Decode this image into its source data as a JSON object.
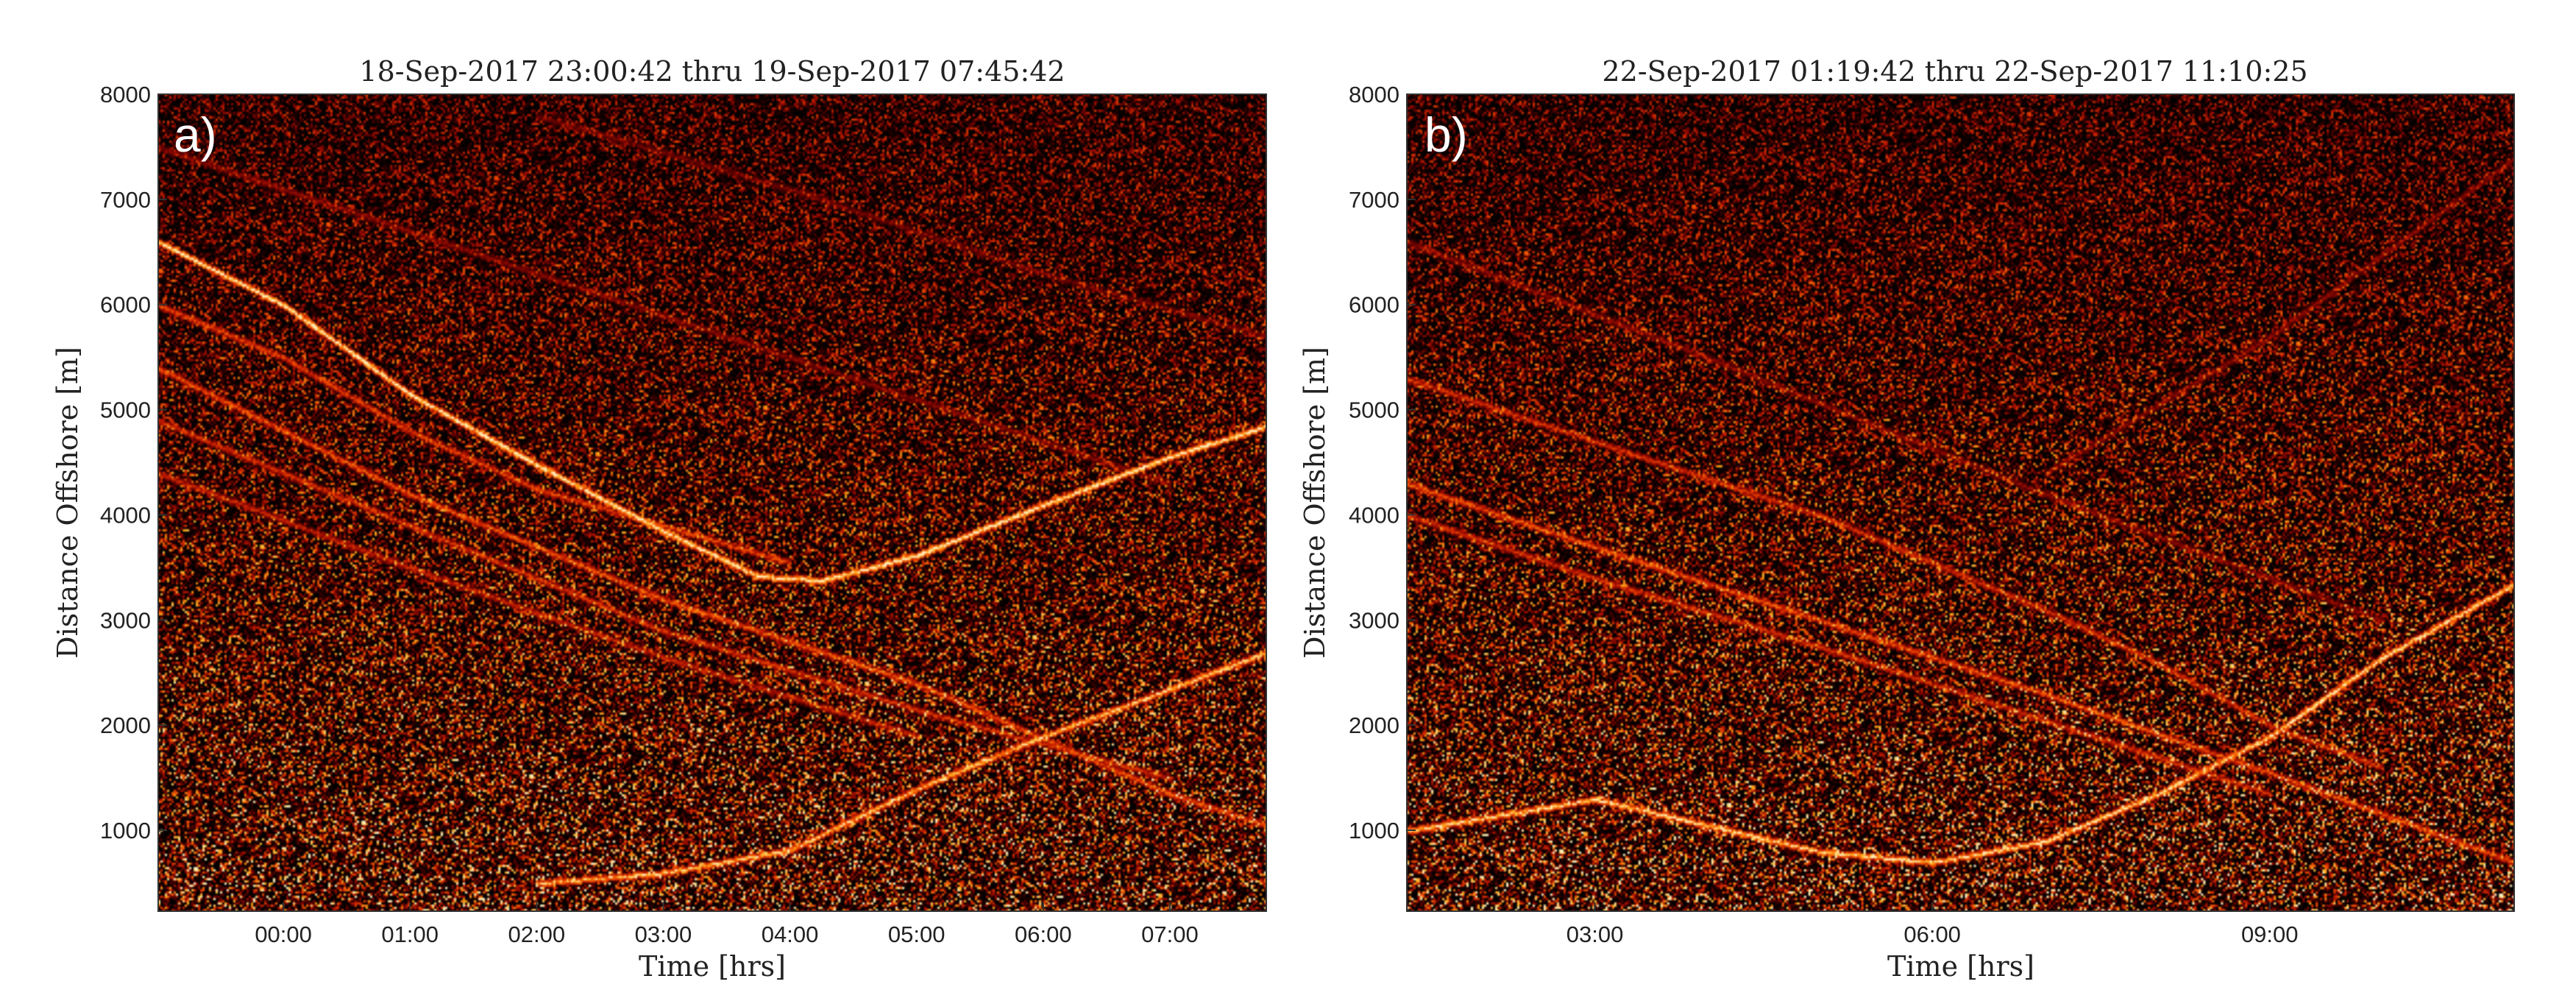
{
  "chart_data": [
    {
      "type": "heatmap",
      "panel_label": "a)",
      "title": "18-Sep-2017 23:00:42 thru 19-Sep-2017 07:45:42",
      "xlabel": "Time [hrs]",
      "ylabel": "Distance Offshore [m]",
      "xlim": [
        "18-Sep-2017 23:00:42",
        "19-Sep-2017 07:45:42"
      ],
      "ylim": [
        230,
        8000
      ],
      "xticks": [
        {
          "value": "19-Sep-2017 00:00",
          "label": "00:00"
        },
        {
          "value": "19-Sep-2017 01:00",
          "label": "01:00"
        },
        {
          "value": "19-Sep-2017 02:00",
          "label": "02:00"
        },
        {
          "value": "19-Sep-2017 03:00",
          "label": "03:00"
        },
        {
          "value": "19-Sep-2017 04:00",
          "label": "04:00"
        },
        {
          "value": "19-Sep-2017 05:00",
          "label": "05:00"
        },
        {
          "value": "19-Sep-2017 06:00",
          "label": "06:00"
        },
        {
          "value": "19-Sep-2017 07:00",
          "label": "07:00"
        }
      ],
      "yticks": [
        {
          "value": 1000,
          "label": "1000"
        },
        {
          "value": 2000,
          "label": "2000"
        },
        {
          "value": 3000,
          "label": "3000"
        },
        {
          "value": 4000,
          "label": "4000"
        },
        {
          "value": 5000,
          "label": "5000"
        },
        {
          "value": 6000,
          "label": "6000"
        },
        {
          "value": 7000,
          "label": "7000"
        },
        {
          "value": 8000,
          "label": "8000"
        }
      ],
      "colormap": [
        "#000000",
        "#5a0000",
        "#b31200",
        "#f04a00",
        "#ffb020",
        "#fff5c0"
      ],
      "tracks": [
        {
          "points": [
            [
              "18-Sep-2017 23:00:42",
              6600
            ],
            [
              "19-Sep-2017 00:00",
              6000
            ],
            [
              "19-Sep-2017 01:00",
              5150
            ],
            [
              "19-Sep-2017 02:00",
              4480
            ],
            [
              "19-Sep-2017 03:00",
              3850
            ],
            [
              "19-Sep-2017 03:45",
              3420
            ],
            [
              "19-Sep-2017 04:15",
              3380
            ],
            [
              "19-Sep-2017 05:00",
              3620
            ],
            [
              "19-Sep-2017 06:00",
              4100
            ],
            [
              "19-Sep-2017 07:00",
              4560
            ],
            [
              "19-Sep-2017 07:45:42",
              4850
            ]
          ],
          "intensity": 1.0
        },
        {
          "points": [
            [
              "18-Sep-2017 23:00:42",
              6000
            ],
            [
              "19-Sep-2017 00:00",
              5500
            ],
            [
              "19-Sep-2017 01:00",
              4800
            ],
            [
              "19-Sep-2017 02:00",
              4250
            ],
            [
              "19-Sep-2017 03:00",
              3900
            ],
            [
              "19-Sep-2017 04:00",
              3550
            ]
          ],
          "intensity": 0.55
        },
        {
          "points": [
            [
              "18-Sep-2017 23:00:42",
              5400
            ],
            [
              "19-Sep-2017 01:00",
              4200
            ],
            [
              "19-Sep-2017 03:00",
              3200
            ],
            [
              "19-Sep-2017 05:00",
              2400
            ],
            [
              "19-Sep-2017 07:00",
              1350
            ],
            [
              "19-Sep-2017 07:45:42",
              1050
            ]
          ],
          "intensity": 0.6
        },
        {
          "points": [
            [
              "18-Sep-2017 23:00:42",
              4900
            ],
            [
              "19-Sep-2017 01:00",
              3900
            ],
            [
              "19-Sep-2017 03:00",
              2900
            ],
            [
              "19-Sep-2017 05:00",
              2150
            ],
            [
              "19-Sep-2017 07:00",
              1500
            ]
          ],
          "intensity": 0.5
        },
        {
          "points": [
            [
              "18-Sep-2017 23:00:42",
              4400
            ],
            [
              "19-Sep-2017 01:00",
              3500
            ],
            [
              "19-Sep-2017 03:00",
              2650
            ],
            [
              "19-Sep-2017 05:00",
              1900
            ]
          ],
          "intensity": 0.45
        },
        {
          "points": [
            [
              "19-Sep-2017 02:00",
              500
            ],
            [
              "19-Sep-2017 03:00",
              600
            ],
            [
              "19-Sep-2017 04:00",
              820
            ],
            [
              "19-Sep-2017 05:00",
              1400
            ],
            [
              "19-Sep-2017 06:00",
              1900
            ],
            [
              "19-Sep-2017 07:00",
              2350
            ],
            [
              "19-Sep-2017 07:45:42",
              2700
            ]
          ],
          "intensity": 0.85
        },
        {
          "points": [
            [
              "18-Sep-2017 23:00:42",
              7500
            ],
            [
              "19-Sep-2017 01:00",
              6700
            ],
            [
              "19-Sep-2017 03:00",
              5900
            ],
            [
              "19-Sep-2017 05:00",
              5100
            ],
            [
              "19-Sep-2017 07:00",
              4300
            ]
          ],
          "intensity": 0.3
        },
        {
          "points": [
            [
              "19-Sep-2017 02:00",
              7800
            ],
            [
              "19-Sep-2017 04:00",
              7100
            ],
            [
              "19-Sep-2017 06:00",
              6300
            ],
            [
              "19-Sep-2017 07:45:42",
              5700
            ]
          ],
          "intensity": 0.25
        }
      ]
    },
    {
      "type": "heatmap",
      "panel_label": "b)",
      "title": "22-Sep-2017 01:19:42 thru 22-Sep-2017 11:10:25",
      "xlabel": "Time [hrs]",
      "ylabel": "Distance Offshore [m]",
      "xlim": [
        "22-Sep-2017 01:19:42",
        "22-Sep-2017 11:10:25"
      ],
      "ylim": [
        230,
        8000
      ],
      "xticks": [
        {
          "value": "22-Sep-2017 03:00",
          "label": "03:00"
        },
        {
          "value": "22-Sep-2017 06:00",
          "label": "06:00"
        },
        {
          "value": "22-Sep-2017 09:00",
          "label": "09:00"
        }
      ],
      "yticks": [
        {
          "value": 1000,
          "label": "1000"
        },
        {
          "value": 2000,
          "label": "2000"
        },
        {
          "value": 3000,
          "label": "3000"
        },
        {
          "value": 4000,
          "label": "4000"
        },
        {
          "value": 5000,
          "label": "5000"
        },
        {
          "value": 6000,
          "label": "6000"
        },
        {
          "value": 7000,
          "label": "7000"
        },
        {
          "value": 8000,
          "label": "8000"
        }
      ],
      "colormap": [
        "#000000",
        "#5a0000",
        "#b31200",
        "#f04a00",
        "#ffb020",
        "#fff5c0"
      ],
      "tracks": [
        {
          "points": [
            [
              "22-Sep-2017 01:19:42",
              1000
            ],
            [
              "22-Sep-2017 03:00",
              1300
            ],
            [
              "22-Sep-2017 05:00",
              800
            ],
            [
              "22-Sep-2017 06:00",
              700
            ],
            [
              "22-Sep-2017 07:00",
              900
            ],
            [
              "22-Sep-2017 08:00",
              1350
            ],
            [
              "22-Sep-2017 09:00",
              1900
            ],
            [
              "22-Sep-2017 10:00",
              2650
            ],
            [
              "22-Sep-2017 11:10:25",
              3350
            ]
          ],
          "intensity": 0.9
        },
        {
          "points": [
            [
              "22-Sep-2017 01:19:42",
              4300
            ],
            [
              "22-Sep-2017 03:00",
              3700
            ],
            [
              "22-Sep-2017 05:00",
              3000
            ],
            [
              "22-Sep-2017 07:00",
              2300
            ],
            [
              "22-Sep-2017 09:00",
              1550
            ],
            [
              "22-Sep-2017 11:10:25",
              700
            ]
          ],
          "intensity": 0.6
        },
        {
          "points": [
            [
              "22-Sep-2017 01:19:42",
              4000
            ],
            [
              "22-Sep-2017 03:00",
              3400
            ],
            [
              "22-Sep-2017 05:00",
              2750
            ],
            [
              "22-Sep-2017 07:00",
              2050
            ],
            [
              "22-Sep-2017 09:00",
              1350
            ]
          ],
          "intensity": 0.5
        },
        {
          "points": [
            [
              "22-Sep-2017 01:19:42",
              5300
            ],
            [
              "22-Sep-2017 03:00",
              4700
            ],
            [
              "22-Sep-2017 05:00",
              4000
            ],
            [
              "22-Sep-2017 07:00",
              3100
            ],
            [
              "22-Sep-2017 08:00",
              2600
            ],
            [
              "22-Sep-2017 09:00",
              2000
            ],
            [
              "22-Sep-2017 10:00",
              1600
            ]
          ],
          "intensity": 0.5
        },
        {
          "points": [
            [
              "22-Sep-2017 01:19:42",
              6600
            ],
            [
              "22-Sep-2017 04:00",
              5500
            ],
            [
              "22-Sep-2017 07:00",
              4200
            ],
            [
              "22-Sep-2017 10:00",
              3000
            ]
          ],
          "intensity": 0.3
        },
        {
          "points": [
            [
              "22-Sep-2017 07:00",
              4400
            ],
            [
              "22-Sep-2017 09:00",
              5700
            ],
            [
              "22-Sep-2017 11:10:25",
              7400
            ]
          ],
          "intensity": 0.3
        }
      ]
    }
  ]
}
